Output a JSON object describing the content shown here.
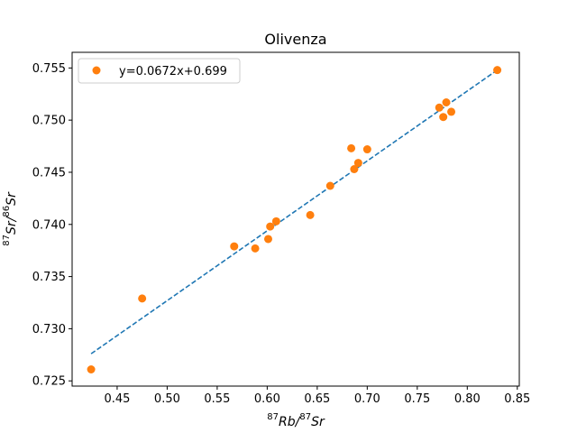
{
  "chart_data": {
    "type": "scatter",
    "title": "Olivenza",
    "xlabel": {
      "sup1": "87",
      "main1": "Rb/",
      "sup2": "87",
      "main2": "Sr"
    },
    "ylabel": {
      "sup1": "87",
      "main1": "Sr/",
      "sup2": "86",
      "main2": "Sr"
    },
    "xlim": [
      0.405,
      0.852
    ],
    "ylim": [
      0.7245,
      0.7565
    ],
    "xticks": [
      "0.45",
      "0.50",
      "0.55",
      "0.60",
      "0.65",
      "0.70",
      "0.75",
      "0.80",
      "0.85"
    ],
    "xtick_values": [
      0.45,
      0.5,
      0.55,
      0.6,
      0.65,
      0.7,
      0.75,
      0.8,
      0.85
    ],
    "yticks": [
      "0.725",
      "0.730",
      "0.735",
      "0.740",
      "0.745",
      "0.750",
      "0.755"
    ],
    "ytick_values": [
      0.725,
      0.73,
      0.735,
      0.74,
      0.745,
      0.75,
      0.755
    ],
    "grid": false,
    "legend_position": "top-left",
    "series": [
      {
        "name": "y=0.0672x+0.699",
        "type": "scatter",
        "color": "#ff7f0e",
        "points": [
          [
            0.424,
            0.7261
          ],
          [
            0.475,
            0.7329
          ],
          [
            0.567,
            0.7379
          ],
          [
            0.588,
            0.7377
          ],
          [
            0.601,
            0.7386
          ],
          [
            0.603,
            0.7398
          ],
          [
            0.609,
            0.7403
          ],
          [
            0.643,
            0.7409
          ],
          [
            0.663,
            0.7437
          ],
          [
            0.684,
            0.7473
          ],
          [
            0.687,
            0.7453
          ],
          [
            0.691,
            0.7459
          ],
          [
            0.7,
            0.7472
          ],
          [
            0.772,
            0.7512
          ],
          [
            0.776,
            0.7503
          ],
          [
            0.779,
            0.7517
          ],
          [
            0.784,
            0.7508
          ],
          [
            0.83,
            0.7548
          ]
        ]
      },
      {
        "type": "line",
        "style": "dashed",
        "color": "#1f77b4",
        "x": [
          0.424,
          0.83
        ],
        "y": [
          0.7276,
          0.7548
        ]
      }
    ]
  }
}
